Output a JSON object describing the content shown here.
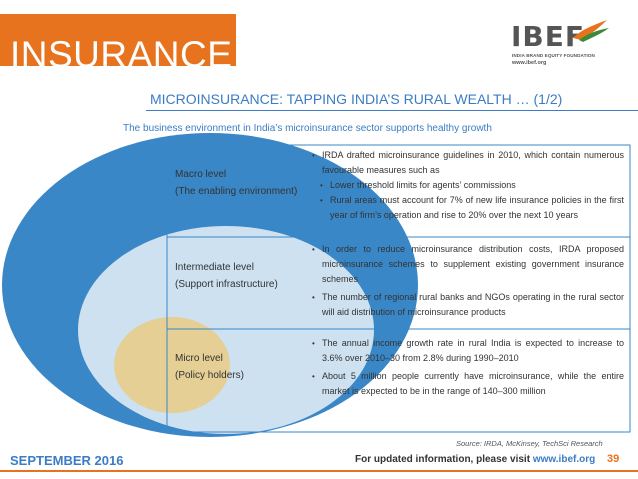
{
  "header": {
    "banner_title": "INSURANCE",
    "logo": {
      "wordmark": "IBEF",
      "tagline": "INDIA BRAND EQUITY FOUNDATION",
      "url": "www.ibef.org"
    }
  },
  "slide": {
    "heading": "MICROINSURANCE: TAPPING INDIA’S RURAL WEALTH … (1/2)",
    "subheading": "The business environment in India’s microinsurance sector supports healthy growth"
  },
  "diagram": {
    "levels": [
      {
        "name": "Macro level",
        "detail": "(The enabling environment)",
        "bullets": [
          {
            "text": "IRDA drafted microinsurance guidelines in 2010, which contain numerous favourable measures such as",
            "sub": false
          },
          {
            "text": "Lower threshold limits for agents’ commissions",
            "sub": true
          },
          {
            "text": "Rural areas must account for 7% of new life insurance policies in the first year of firm’s operation and rise to 20% over the next 10 years",
            "sub": true
          }
        ]
      },
      {
        "name": "Intermediate level",
        "detail": "(Support infrastructure)",
        "bullets": [
          {
            "text": "In order to reduce microinsurance distribution costs, IRDA proposed microinsurance schemes to supplement existing government insurance schemes",
            "sub": false
          },
          {
            "text": "The number of regional rural banks and NGOs operating in the rural sector will aid distribution of microinsurance products",
            "sub": false
          }
        ]
      },
      {
        "name": "Micro level",
        "detail": "(Policy holders)",
        "bullets": [
          {
            "text": "The annual income growth rate in rural India is expected to increase to 3.6% over 2010–30 from 2.8% during 1990–2010",
            "sub": false
          },
          {
            "text": "About 5 million people currently have microinsurance, while the entire market is expected to be in the range of 140–300 million",
            "sub": false
          }
        ]
      }
    ],
    "colors": {
      "outer_ring": "#3a87c8",
      "middle_ring": "#cde1f1",
      "inner_core": "#e5cf95",
      "accent": "#e8731e",
      "heading_blue": "#3c7cc4"
    }
  },
  "footer": {
    "source": "Source: IRDA, McKinsey, TechSci Research",
    "date": "SEPTEMBER 2016",
    "note_prefix": "For updated information, please visit ",
    "note_url": "www.ibef.org",
    "page_number": "39"
  }
}
